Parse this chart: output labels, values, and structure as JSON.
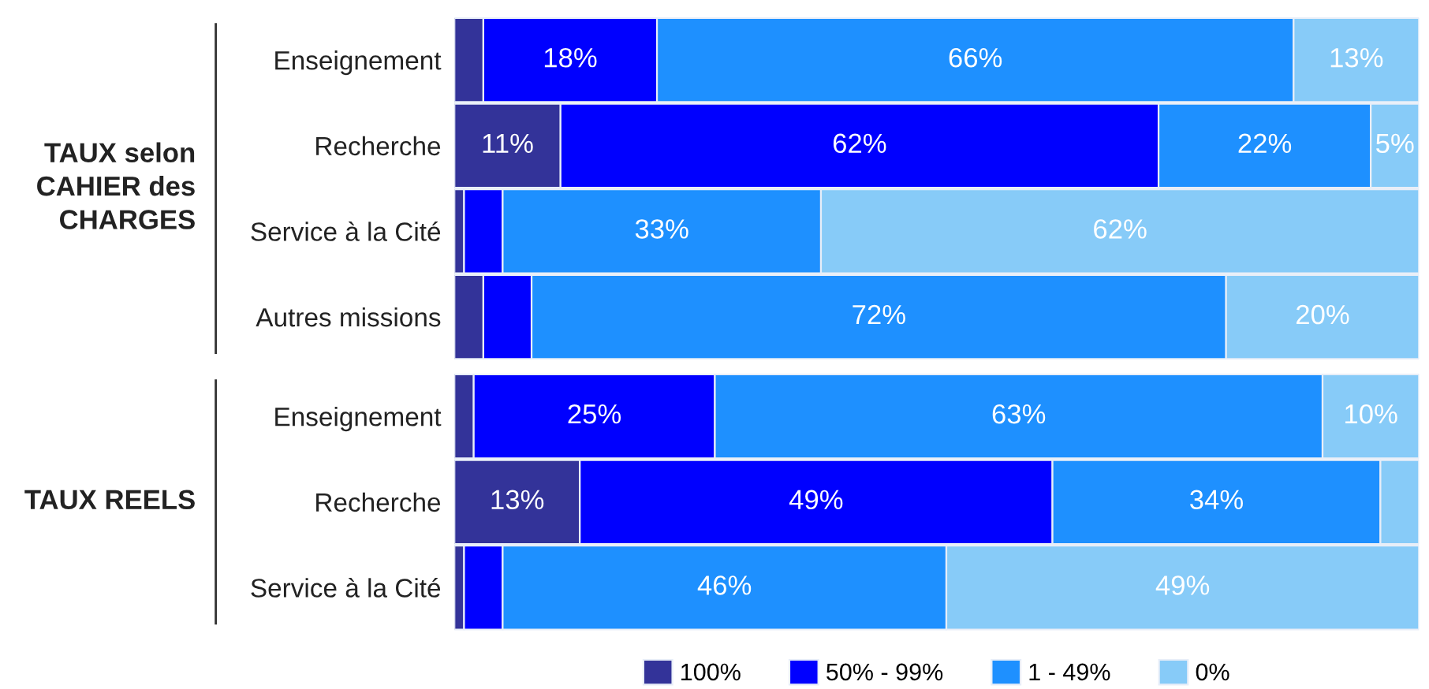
{
  "chart_data": [
    {
      "type": "bar",
      "orientation": "horizontal",
      "stacked": true,
      "title": "TAUX selon\nCAHIER des\nCHARGES",
      "categories": [
        "Enseignement",
        "Recherche",
        "Service à la Cité",
        "Autres missions"
      ],
      "legend": false,
      "grid": false,
      "series": [
        {
          "color": "#333399",
          "values": [
            3,
            11,
            1,
            3
          ],
          "value_labels": [
            null,
            "11%",
            null,
            null
          ]
        },
        {
          "color": "#0000ff",
          "values": [
            18,
            62,
            4,
            5
          ],
          "value_labels": [
            "18%",
            "62%",
            null,
            null
          ]
        },
        {
          "color": "#1e90ff",
          "values": [
            66,
            22,
            33,
            72
          ],
          "value_labels": [
            "66%",
            "22%",
            "33%",
            "72%"
          ]
        },
        {
          "color": "#87cbf8",
          "values": [
            13,
            5,
            62,
            20
          ],
          "value_labels": [
            "13%",
            "5%",
            "62%",
            "20%"
          ]
        }
      ]
    },
    {
      "type": "bar",
      "orientation": "horizontal",
      "stacked": true,
      "title": "TAUX REELS",
      "categories": [
        "Enseignement",
        "Recherche",
        "Service à la Cité"
      ],
      "legend": "bottom",
      "grid": false,
      "series": [
        {
          "name": "100%",
          "color": "#333399",
          "values": [
            2,
            13,
            1
          ],
          "value_labels": [
            null,
            "13%",
            null
          ]
        },
        {
          "name": "50% - 99%",
          "color": "#0000ff",
          "values": [
            25,
            49,
            4
          ],
          "value_labels": [
            "25%",
            "49%",
            null
          ]
        },
        {
          "name": "1 - 49%",
          "color": "#1e90ff",
          "values": [
            63,
            34,
            46
          ],
          "value_labels": [
            "63%",
            "34%",
            "46%"
          ]
        },
        {
          "name": "0%",
          "color": "#87cbf8",
          "values": [
            10,
            4,
            49
          ],
          "value_labels": [
            "10%",
            null,
            "49%"
          ]
        }
      ]
    }
  ]
}
